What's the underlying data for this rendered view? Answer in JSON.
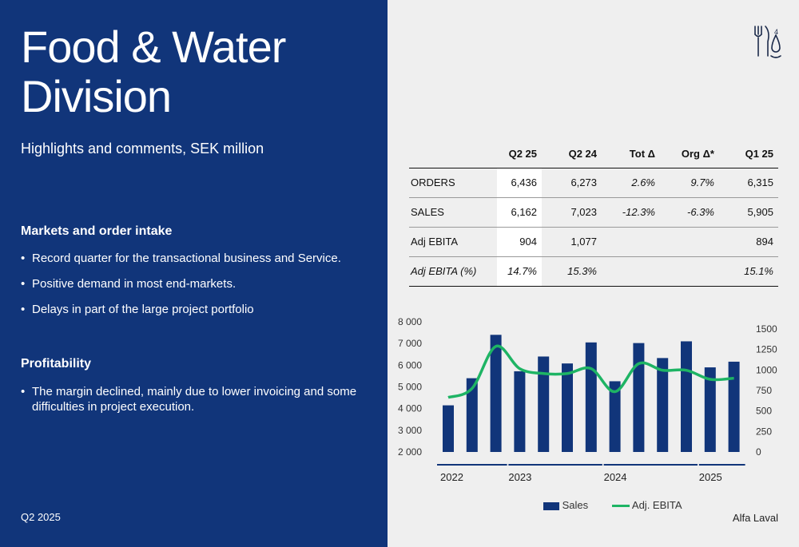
{
  "title_lines": [
    "Food & Water",
    "Division"
  ],
  "subtitle": "Highlights and comments, SEK million",
  "sections": {
    "markets": {
      "heading": "Markets and order intake",
      "bullets": [
        "Record quarter for the transactional business and Service.",
        "Positive demand in most end-markets.",
        "Delays in part of the large project portfolio"
      ]
    },
    "profitability": {
      "heading": "Profitability",
      "bullets": [
        "The margin declined, mainly due to lower invoicing and some difficulties in project execution."
      ]
    }
  },
  "footer": {
    "period": "Q2 2025",
    "brand": "Alfa Laval"
  },
  "page_number": "4",
  "logo_icon": "fork-knife-drop-icon",
  "table": {
    "columns": [
      "",
      "Q2 25",
      "Q2 24",
      "Tot Δ",
      "Org Δ*",
      "Q1 25"
    ],
    "rows": [
      {
        "label": "ORDERS",
        "cells": [
          "6,436",
          "6,273",
          "2.6%",
          "9.7%",
          "6,315"
        ]
      },
      {
        "label": "SALES",
        "cells": [
          "6,162",
          "7,023",
          "-12.3%",
          "-6.3%",
          "5,905"
        ]
      },
      {
        "label": "Adj EBITA",
        "cells": [
          "904",
          "1,077",
          "",
          "",
          "894"
        ]
      },
      {
        "label": "Adj EBITA (%)",
        "cells": [
          "14.7%",
          "15.3%",
          "",
          "",
          "15.1%"
        ]
      }
    ]
  },
  "chart_data": {
    "type": "bar",
    "series": [
      {
        "name": "Sales",
        "type": "bar",
        "axis": "left",
        "values": [
          4150,
          5400,
          7400,
          5720,
          6400,
          6080,
          7050,
          5260,
          7020,
          6330,
          7100,
          5900,
          6162
        ]
      },
      {
        "name": "Adj. EBITA",
        "type": "line",
        "axis": "right",
        "values": [
          670,
          780,
          1290,
          1020,
          960,
          960,
          1020,
          740,
          1080,
          1000,
          1000,
          890,
          904
        ]
      }
    ],
    "year_groups": [
      {
        "label": "2022",
        "start": 0,
        "count": 3
      },
      {
        "label": "2023",
        "start": 3,
        "count": 4
      },
      {
        "label": "2024",
        "start": 7,
        "count": 4
      },
      {
        "label": "2025",
        "start": 11,
        "count": 2
      }
    ],
    "y_left": {
      "min": 2000,
      "max": 8000,
      "ticks": [
        "8 000",
        "7 000",
        "6 000",
        "5 000",
        "4 000",
        "3 000",
        "2 000"
      ]
    },
    "y_right": {
      "min": 0,
      "max": 1500,
      "ticks": [
        "1500",
        "1250",
        "1000",
        "750",
        "500",
        "250",
        "0"
      ]
    },
    "colors": {
      "bar": "#11357a",
      "line": "#1eb464"
    },
    "legend_placement": "bottom"
  }
}
